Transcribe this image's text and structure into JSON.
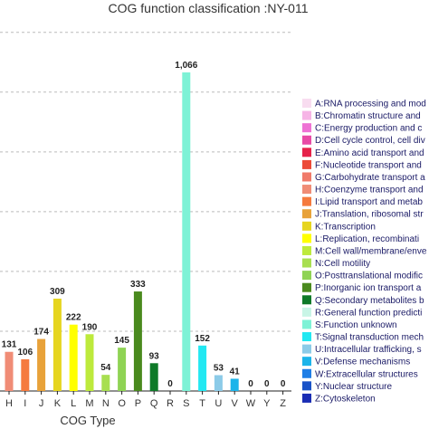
{
  "chart_data": {
    "type": "bar",
    "title": "COG function classification :NY-011",
    "xlabel": "COG Type",
    "ylabel": "",
    "ylim": [
      0,
      1200
    ],
    "grid": "dashed horizontal",
    "legend_position": "right",
    "categories": [
      "H",
      "I",
      "J",
      "K",
      "L",
      "M",
      "N",
      "O",
      "P",
      "Q",
      "R",
      "S",
      "T",
      "U",
      "V",
      "W",
      "Y",
      "Z"
    ],
    "values": [
      131,
      106,
      174,
      309,
      222,
      190,
      54,
      145,
      333,
      93,
      0,
      1066,
      152,
      53,
      41,
      0,
      0,
      0
    ],
    "value_labels": [
      "131",
      "106",
      "174",
      "309",
      "222",
      "190",
      "54",
      "145",
      "333",
      "93",
      "0",
      "1,066",
      "152",
      "53",
      "41",
      "0",
      "0",
      "0"
    ],
    "colors": [
      "#f08c76",
      "#f57a3e",
      "#e8a23a",
      "#e6d51f",
      "#ffff00",
      "#bdea3c",
      "#a8df50",
      "#8fd354",
      "#4a8a1e",
      "#0e7a28",
      "#c8f5e6",
      "#7ef2d6",
      "#22e8f2",
      "#8ccbe8",
      "#1cb4ea",
      "#1f7ee6",
      "#1a53c8",
      "#1a2db4"
    ],
    "legend": [
      {
        "label": "A:RNA processing and mod",
        "color": "#f8dcf0"
      },
      {
        "label": "B:Chromatin structure and",
        "color": "#f6b4e6"
      },
      {
        "label": "C:Energy production and c",
        "color": "#ee72d4"
      },
      {
        "label": "D:Cell cycle control, cell div",
        "color": "#e84aa6"
      },
      {
        "label": "E:Amino acid transport and",
        "color": "#e6224a"
      },
      {
        "label": "F:Nucleotide transport and",
        "color": "#ec4a38"
      },
      {
        "label": "G:Carbohydrate transport a",
        "color": "#f07a6a"
      },
      {
        "label": "H:Coenzyme transport and",
        "color": "#f08c76"
      },
      {
        "label": "I:Lipid transport and metab",
        "color": "#f57a3e"
      },
      {
        "label": "J:Translation, ribosomal str",
        "color": "#e8a23a"
      },
      {
        "label": "K:Transcription",
        "color": "#e6d51f"
      },
      {
        "label": "L:Replication, recombinati",
        "color": "#ffff00"
      },
      {
        "label": "M:Cell wall/membrane/enve",
        "color": "#bdea3c"
      },
      {
        "label": "N:Cell motility",
        "color": "#a8df50"
      },
      {
        "label": "O:Posttranslational modific",
        "color": "#8fd354"
      },
      {
        "label": "P:Inorganic ion transport a",
        "color": "#4a8a1e"
      },
      {
        "label": "Q:Secondary metabolites b",
        "color": "#0e7a28"
      },
      {
        "label": "R:General function predicti",
        "color": "#c8f5e6"
      },
      {
        "label": "S:Function unknown",
        "color": "#7ef2d6"
      },
      {
        "label": "T:Signal transduction mech",
        "color": "#22e8f2"
      },
      {
        "label": "U:Intracellular trafficking, s",
        "color": "#8ccbe8"
      },
      {
        "label": "V:Defense mechanisms",
        "color": "#1cb4ea"
      },
      {
        "label": "W:Extracellular structures",
        "color": "#1f7ee6"
      },
      {
        "label": "Y:Nuclear structure",
        "color": "#1a53c8"
      },
      {
        "label": "Z:Cytoskeleton",
        "color": "#1a2db4"
      }
    ]
  }
}
